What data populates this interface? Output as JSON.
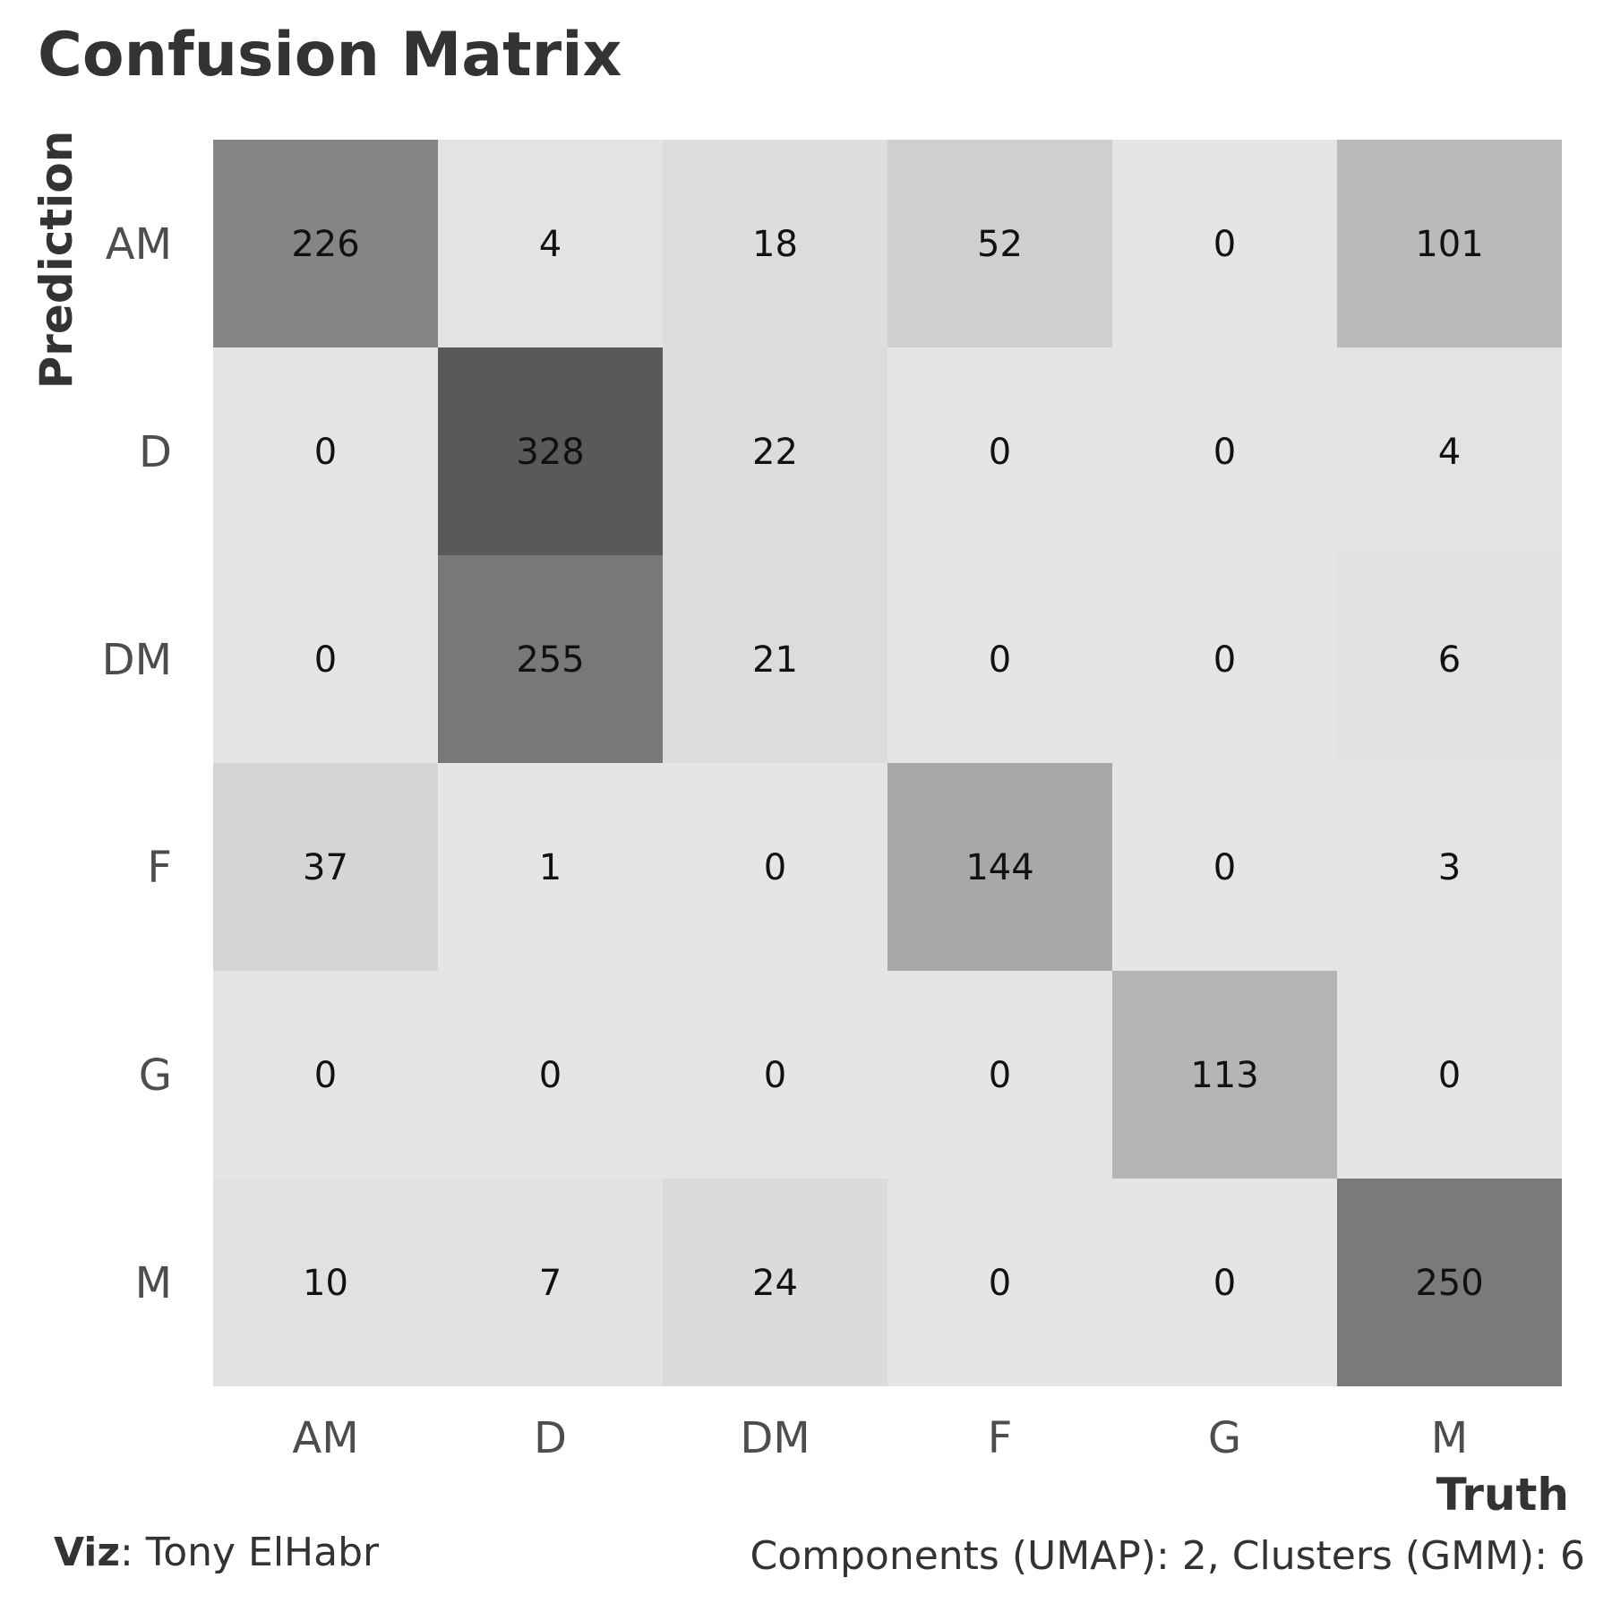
{
  "chart_data": {
    "type": "heatmap",
    "title": "Confusion Matrix",
    "xlabel": "Truth",
    "ylabel": "Prediction",
    "x_categories": [
      "AM",
      "D",
      "DM",
      "F",
      "G",
      "M"
    ],
    "y_categories": [
      "AM",
      "D",
      "DM",
      "F",
      "G",
      "M"
    ],
    "values": [
      [
        226,
        4,
        18,
        52,
        0,
        101
      ],
      [
        0,
        328,
        22,
        0,
        0,
        4
      ],
      [
        0,
        255,
        21,
        0,
        0,
        6
      ],
      [
        37,
        1,
        0,
        144,
        0,
        3
      ],
      [
        0,
        0,
        0,
        0,
        113,
        0
      ],
      [
        10,
        7,
        24,
        0,
        0,
        250
      ]
    ],
    "color_scale": {
      "low": "#e5e5e5",
      "high": "#595959"
    },
    "grid": false,
    "legend": "none"
  },
  "caption": {
    "left_label": "Viz",
    "left_text": ": Tony ElHabr",
    "right_text": "Components (UMAP): 2, Clusters (GMM): 6"
  }
}
